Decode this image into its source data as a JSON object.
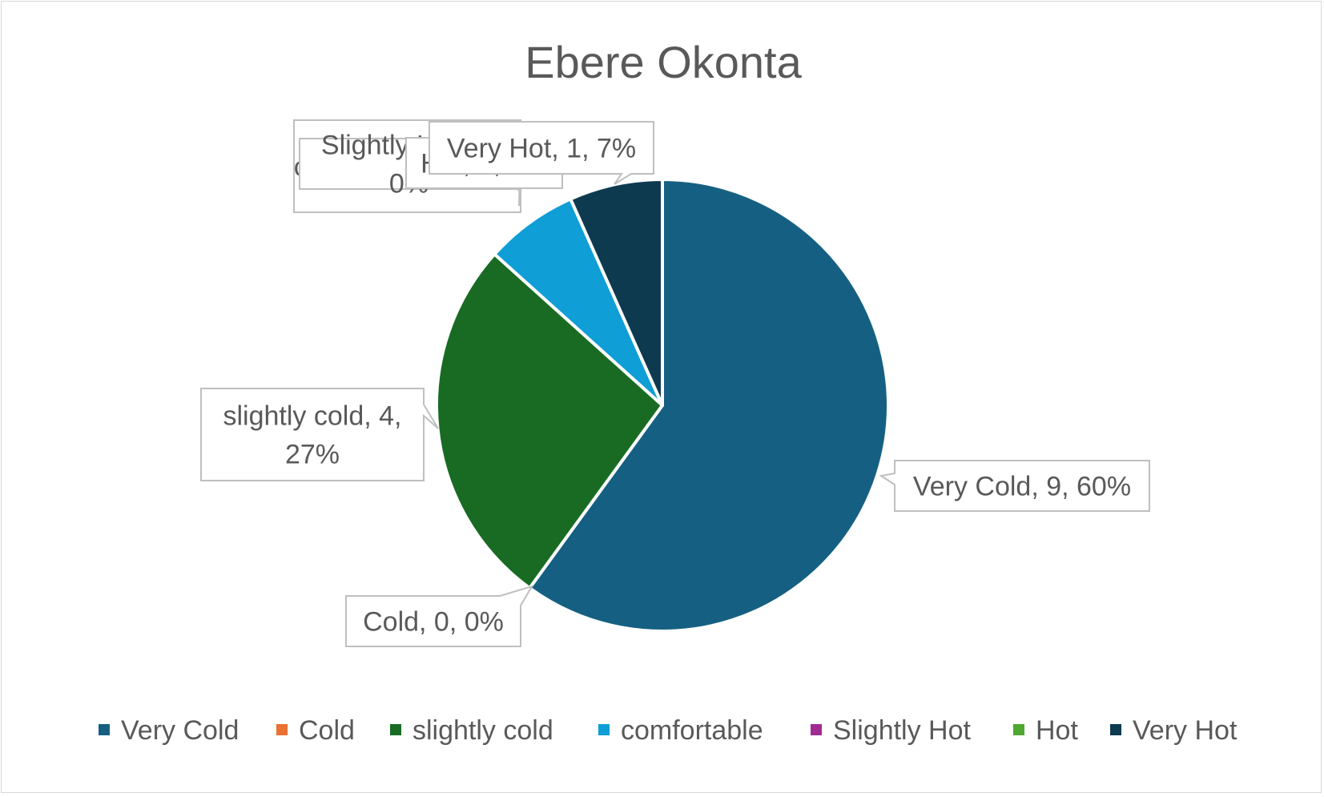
{
  "chart_data": {
    "type": "pie",
    "title": "Ebere Okonta",
    "categories": [
      "Very Cold",
      "Cold",
      "slightly cold",
      "comfortable",
      "Slightly Hot",
      "Hot",
      "Very Hot"
    ],
    "values": [
      9,
      0,
      4,
      1,
      0,
      0,
      1
    ],
    "percent_labels": [
      "60%",
      "0%",
      "27%",
      "7%",
      "0%",
      "0%",
      "7%"
    ],
    "colors": [
      "#156082",
      "#e97132",
      "#196b24",
      "#0f9ed5",
      "#a02b93",
      "#4ea72e",
      "#0e3a50"
    ],
    "data_labels": [
      {
        "lines": [
          "Very Cold, 9, 60%"
        ]
      },
      {
        "lines": [
          "Cold, 0, 0%"
        ]
      },
      {
        "lines": [
          "slightly cold, 4,",
          "27%"
        ]
      },
      {
        "lines": [
          "comfortable, 1, 7%"
        ]
      },
      {
        "lines": [
          "Slightly Hot, 0,",
          "0%"
        ]
      },
      {
        "lines": [
          "Hot, 0, 0%"
        ]
      },
      {
        "lines": [
          "Very Hot, 1, 7%"
        ]
      }
    ],
    "legend_position": "bottom",
    "start_angle_deg": 0,
    "direction": "clockwise"
  }
}
